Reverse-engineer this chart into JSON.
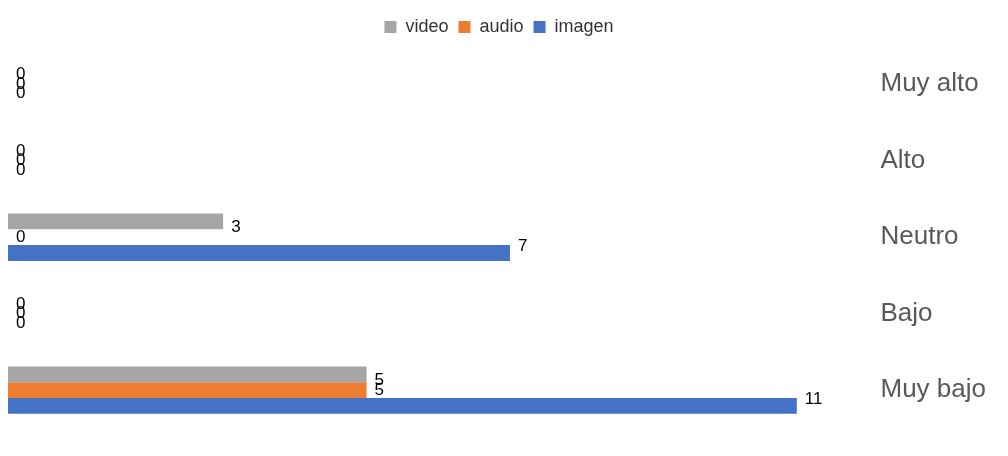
{
  "chart_data": {
    "type": "bar",
    "orientation": "horizontal",
    "categories": [
      "Muy alto",
      "Alto",
      "Neutro",
      "Bajo",
      "Muy bajo"
    ],
    "series": [
      {
        "name": "video",
        "color": "#a5a5a5",
        "values": [
          0,
          0,
          3,
          0,
          5
        ]
      },
      {
        "name": "audio",
        "color": "#ed7d31",
        "values": [
          0,
          0,
          0,
          0,
          5
        ]
      },
      {
        "name": "imagen",
        "color": "#4472c4",
        "values": [
          0,
          0,
          7,
          0,
          11
        ]
      }
    ],
    "data_labels": true,
    "legend": "top",
    "grid": false,
    "tick_labels": "y"
  }
}
